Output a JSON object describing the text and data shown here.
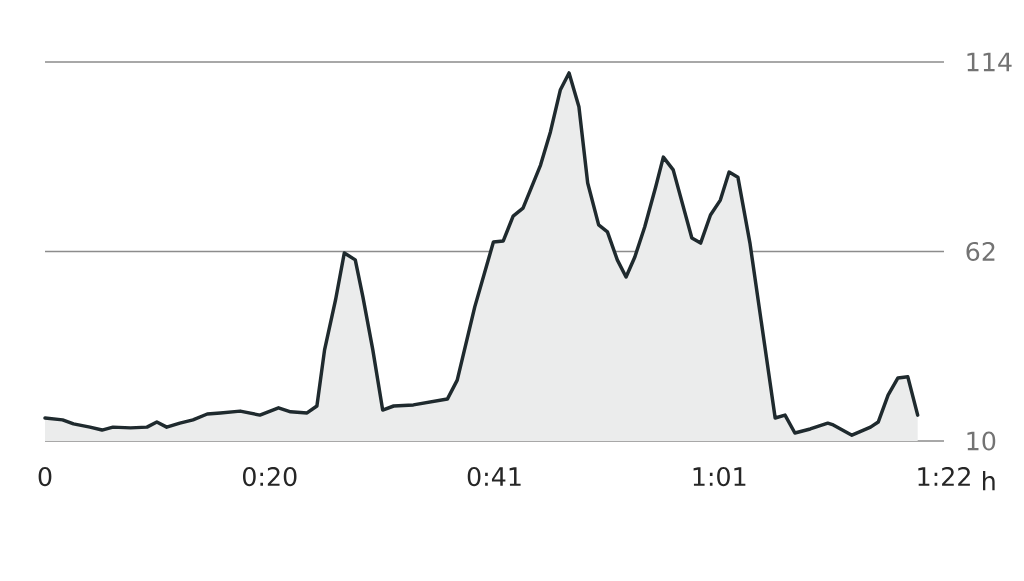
{
  "chart_data": {
    "type": "area",
    "xlabel": "h",
    "xlim": [
      0,
      82
    ],
    "xticks": [
      0,
      {
        "value": 20.5,
        "label": "0:20"
      },
      {
        "value": 41,
        "label": "0:41"
      },
      {
        "value": 61.5,
        "label": "1:01"
      },
      {
        "value": 82,
        "label": "1:22"
      }
    ],
    "ylim": [
      10,
      114
    ],
    "yticks": [
      10,
      62,
      114
    ],
    "grid": "y",
    "line_style": "solid",
    "series": [
      {
        "color": "#1f2a2e",
        "x": [
          0,
          1.6,
          2.6,
          4.1,
          5.2,
          6.2,
          7.8,
          9.3,
          10.2,
          11.1,
          12.3,
          13.5,
          14.8,
          16.0,
          17.8,
          19.6,
          21.3,
          22.4,
          23.9,
          24.8,
          25.5,
          26.5,
          27.3,
          28.3,
          29.0,
          29.9,
          30.8,
          31.8,
          33.6,
          36.7,
          37.6,
          39.2,
          40.9,
          41.8,
          42.7,
          43.6,
          45.2,
          46.1,
          47.0,
          47.8,
          48.7,
          49.5,
          50.5,
          51.3,
          52.2,
          53.0,
          53.8,
          54.7,
          55.7,
          56.4,
          57.3,
          59.0,
          59.8,
          60.7,
          61.6,
          62.4,
          63.2,
          64.3,
          66.6,
          67.5,
          68.4,
          69.8,
          71.4,
          71.9,
          73.6,
          75.3,
          76.0,
          76.9,
          77.8,
          78.7,
          79.6
        ],
        "values": [
          16.3,
          15.8,
          14.7,
          13.8,
          13.0,
          13.8,
          13.6,
          13.8,
          15.2,
          13.8,
          14.9,
          15.8,
          17.4,
          17.7,
          18.2,
          17.1,
          19.1,
          18.0,
          17.7,
          19.6,
          35.0,
          48.7,
          61.6,
          59.7,
          49.5,
          35.0,
          18.5,
          19.6,
          19.9,
          21.5,
          26.7,
          46.8,
          64.6,
          64.9,
          71.7,
          73.9,
          85.7,
          94.8,
          106.3,
          111.0,
          101.7,
          80.8,
          69.3,
          67.4,
          59.7,
          55.0,
          60.5,
          68.7,
          79.7,
          87.9,
          84.4,
          65.7,
          64.3,
          72.0,
          76.1,
          83.8,
          82.4,
          64.3,
          16.3,
          17.1,
          12.2,
          13.3,
          14.9,
          14.4,
          11.6,
          13.8,
          15.2,
          22.6,
          27.3,
          27.6,
          17.1
        ]
      }
    ]
  }
}
